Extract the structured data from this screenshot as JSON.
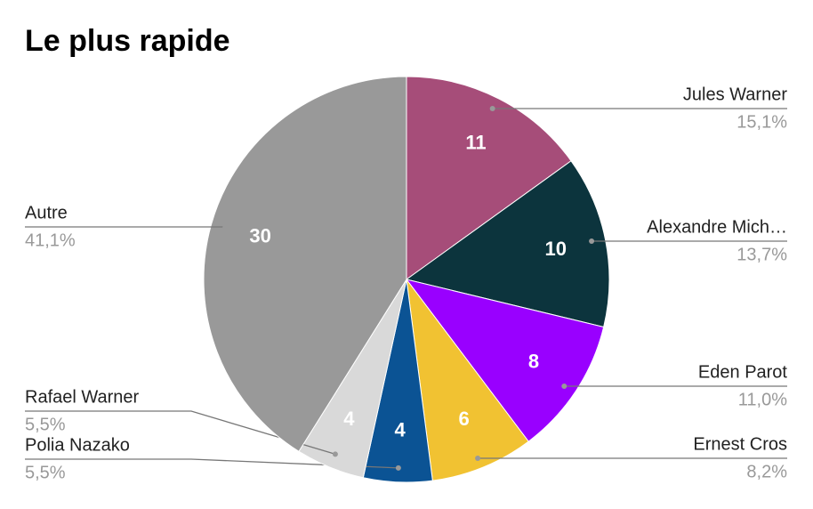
{
  "chart_data": {
    "type": "pie",
    "title": "Le plus rapide",
    "categories": [
      "Jules Warner",
      "Alexandre Mich…",
      "Eden Parot",
      "Ernest Cros",
      "Polia Nazako",
      "Rafael Warner",
      "Autre"
    ],
    "values": [
      11,
      10,
      8,
      6,
      4,
      4,
      30
    ],
    "percent_labels": [
      "15,1%",
      "13,7%",
      "11,0%",
      "8,2%",
      "5,5%",
      "5,5%",
      "41,1%"
    ],
    "colors": [
      "#a64d79",
      "#0c343d",
      "#9900ff",
      "#f1c232",
      "#0b5394",
      "#d9d9d9",
      "#999999"
    ]
  }
}
